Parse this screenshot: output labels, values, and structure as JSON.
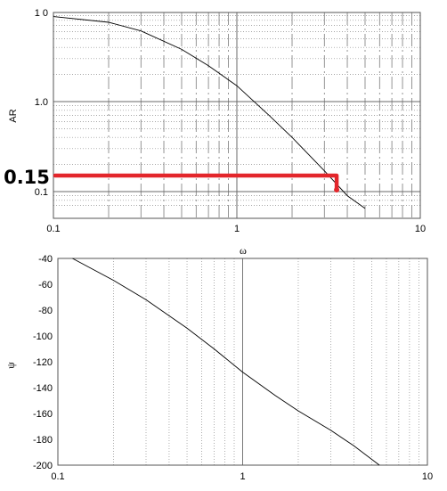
{
  "chart_data": [
    {
      "type": "line",
      "title": "",
      "xlabel": "",
      "ylabel": "AR",
      "xscale": "log",
      "yscale": "log",
      "xlim": [
        0.1,
        10
      ],
      "ylim": [
        0.06,
        10
      ],
      "grid": true,
      "x_ticks": [
        "0.1",
        "1",
        "10"
      ],
      "y_ticks": [
        "0.1",
        "1.0",
        "1 0"
      ],
      "series": [
        {
          "name": "",
          "x": [
            0.1,
            0.2,
            0.3,
            0.5,
            0.7,
            1,
            1.5,
            2,
            3,
            4,
            5
          ],
          "y": [
            8.8,
            7.6,
            6.1,
            3.8,
            2.5,
            1.5,
            0.7,
            0.4,
            0.17,
            0.09,
            0.065
          ]
        }
      ],
      "annotation": {
        "label": "0.15",
        "x": 3.5,
        "y": 0.18,
        "color": "#e3262b"
      }
    },
    {
      "type": "line",
      "title": "",
      "xlabel": "ω",
      "ylabel": "ψ",
      "xscale": "log",
      "xlim": [
        0.1,
        10
      ],
      "ylim": [
        -200,
        -40
      ],
      "grid": true,
      "x_ticks": [
        "0.1",
        "1",
        "10"
      ],
      "y_ticks": [
        "-40",
        "-60",
        "-80",
        "-100",
        "-120",
        "-140",
        "-160",
        "-180",
        "-200"
      ],
      "series": [
        {
          "name": "",
          "x": [
            0.12,
            0.2,
            0.3,
            0.5,
            0.7,
            1,
            1.5,
            2,
            3,
            4,
            5.5
          ],
          "y": [
            -40,
            -57,
            -72,
            -94,
            -110,
            -128,
            -146,
            -158,
            -173,
            -185,
            -200
          ]
        }
      ]
    }
  ]
}
